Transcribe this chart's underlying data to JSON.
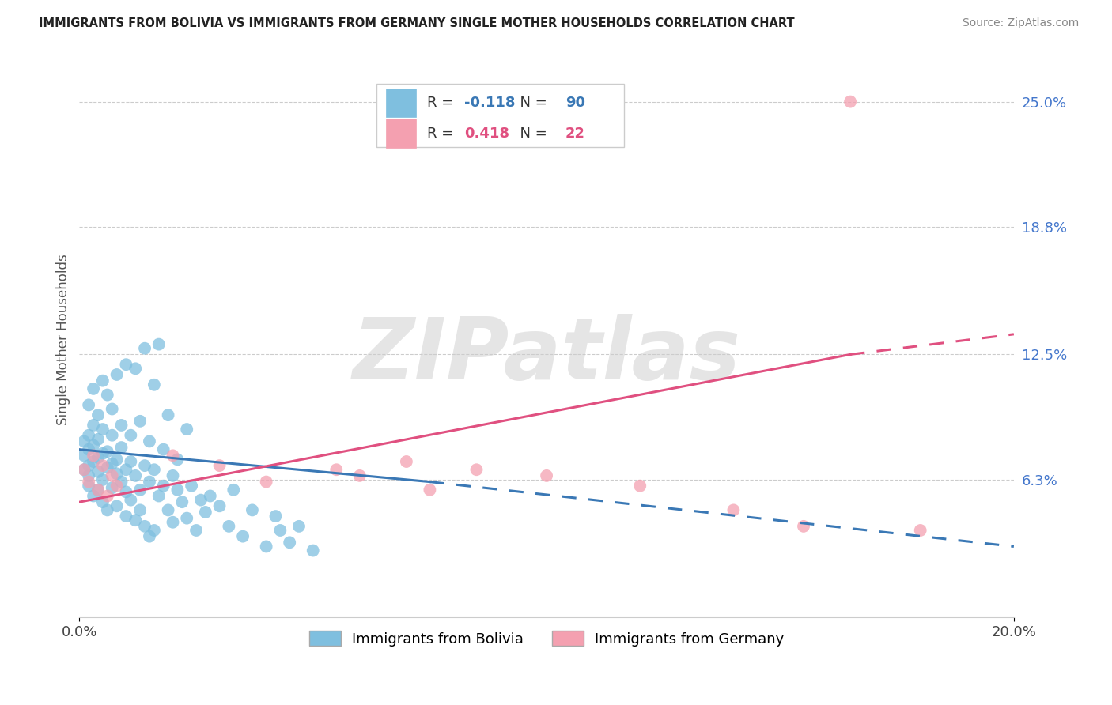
{
  "title": "IMMIGRANTS FROM BOLIVIA VS IMMIGRANTS FROM GERMANY SINGLE MOTHER HOUSEHOLDS CORRELATION CHART",
  "source_text": "Source: ZipAtlas.com",
  "ylabel": "Single Mother Households",
  "watermark": "ZIPatlas",
  "xlim": [
    0.0,
    0.2
  ],
  "ylim": [
    -0.005,
    0.27
  ],
  "xtick_labels": [
    "0.0%",
    "20.0%"
  ],
  "xtick_vals": [
    0.0,
    0.2
  ],
  "ytick_labels_right": [
    "6.3%",
    "12.5%",
    "18.8%",
    "25.0%"
  ],
  "ytick_vals_right": [
    0.063,
    0.125,
    0.188,
    0.25
  ],
  "bolivia_R": -0.118,
  "bolivia_N": 90,
  "germany_R": 0.418,
  "germany_N": 22,
  "bolivia_color": "#7fbfdf",
  "germany_color": "#f4a0b0",
  "bolivia_trend_color": "#3a78b5",
  "germany_trend_color": "#e05080",
  "legend_label_bolivia": "Immigrants from Bolivia",
  "legend_label_germany": "Immigrants from Germany",
  "bolivia_x": [
    0.001,
    0.001,
    0.001,
    0.002,
    0.002,
    0.002,
    0.002,
    0.002,
    0.003,
    0.003,
    0.003,
    0.003,
    0.004,
    0.004,
    0.004,
    0.004,
    0.005,
    0.005,
    0.005,
    0.005,
    0.006,
    0.006,
    0.006,
    0.007,
    0.007,
    0.007,
    0.008,
    0.008,
    0.008,
    0.009,
    0.009,
    0.01,
    0.01,
    0.01,
    0.011,
    0.011,
    0.012,
    0.012,
    0.013,
    0.013,
    0.014,
    0.014,
    0.015,
    0.015,
    0.016,
    0.016,
    0.017,
    0.018,
    0.019,
    0.02,
    0.02,
    0.021,
    0.022,
    0.023,
    0.024,
    0.025,
    0.026,
    0.027,
    0.028,
    0.03,
    0.032,
    0.033,
    0.035,
    0.037,
    0.04,
    0.042,
    0.043,
    0.045,
    0.047,
    0.05,
    0.002,
    0.003,
    0.004,
    0.005,
    0.006,
    0.007,
    0.008,
    0.009,
    0.01,
    0.011,
    0.012,
    0.013,
    0.014,
    0.015,
    0.016,
    0.017,
    0.018,
    0.019,
    0.021,
    0.023
  ],
  "bolivia_y": [
    0.075,
    0.082,
    0.068,
    0.078,
    0.07,
    0.085,
    0.065,
    0.06,
    0.072,
    0.08,
    0.055,
    0.09,
    0.074,
    0.067,
    0.058,
    0.083,
    0.076,
    0.063,
    0.088,
    0.052,
    0.069,
    0.077,
    0.048,
    0.071,
    0.059,
    0.085,
    0.066,
    0.073,
    0.05,
    0.062,
    0.079,
    0.068,
    0.057,
    0.045,
    0.072,
    0.053,
    0.065,
    0.043,
    0.058,
    0.048,
    0.07,
    0.04,
    0.062,
    0.035,
    0.068,
    0.038,
    0.055,
    0.06,
    0.048,
    0.065,
    0.042,
    0.058,
    0.052,
    0.044,
    0.06,
    0.038,
    0.053,
    0.047,
    0.055,
    0.05,
    0.04,
    0.058,
    0.035,
    0.048,
    0.03,
    0.045,
    0.038,
    0.032,
    0.04,
    0.028,
    0.1,
    0.108,
    0.095,
    0.112,
    0.105,
    0.098,
    0.115,
    0.09,
    0.12,
    0.085,
    0.118,
    0.092,
    0.128,
    0.082,
    0.11,
    0.13,
    0.078,
    0.095,
    0.073,
    0.088
  ],
  "germany_x": [
    0.001,
    0.002,
    0.003,
    0.004,
    0.005,
    0.006,
    0.007,
    0.008,
    0.02,
    0.03,
    0.04,
    0.055,
    0.06,
    0.07,
    0.075,
    0.085,
    0.1,
    0.12,
    0.14,
    0.155,
    0.165,
    0.18
  ],
  "germany_y": [
    0.068,
    0.062,
    0.075,
    0.058,
    0.07,
    0.055,
    0.065,
    0.06,
    0.075,
    0.07,
    0.062,
    0.068,
    0.065,
    0.072,
    0.058,
    0.068,
    0.065,
    0.06,
    0.048,
    0.04,
    0.25,
    0.038
  ],
  "bolivia_trend_x0": 0.0,
  "bolivia_trend_x_split": 0.075,
  "bolivia_trend_x1": 0.2,
  "bolivia_trend_y_at_x0": 0.078,
  "bolivia_trend_y_at_split": 0.062,
  "bolivia_trend_y_at_x1": 0.03,
  "germany_trend_x0": 0.0,
  "germany_trend_x_split": 0.165,
  "germany_trend_x1": 0.2,
  "germany_trend_y_at_x0": 0.052,
  "germany_trend_y_at_split": 0.125,
  "germany_trend_y_at_x1": 0.135
}
